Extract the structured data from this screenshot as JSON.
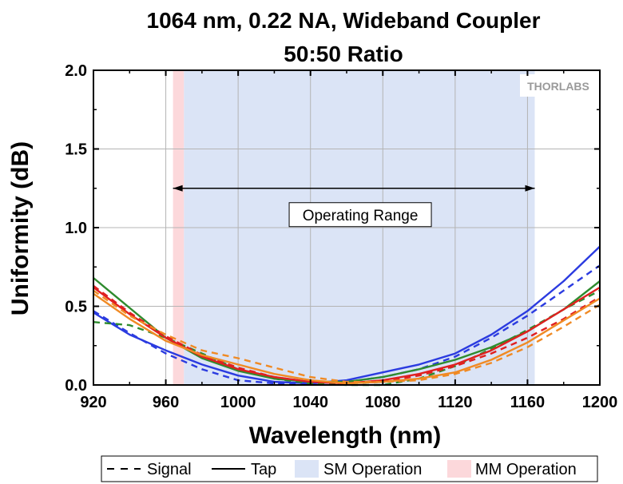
{
  "chart_data": {
    "type": "line",
    "title_line1": "1064 nm, 0.22 NA, Wideband Coupler",
    "title_line2": "50:50 Ratio",
    "xlabel": "Wavelength (nm)",
    "ylabel": "Uniformity (dB)",
    "xlim": [
      920,
      1200
    ],
    "ylim": [
      0,
      2.0
    ],
    "xticks": [
      920,
      960,
      1000,
      1040,
      1080,
      1120,
      1160,
      1200
    ],
    "yticks": [
      0,
      0.5,
      1.0,
      1.5,
      2.0
    ],
    "ytick_labels": [
      "0.0",
      "0.5",
      "1.0",
      "1.5",
      "2.0"
    ],
    "grid": true,
    "bands": [
      {
        "name": "SM Operation",
        "x": [
          970,
          1164
        ],
        "color": "#dbe4f6"
      },
      {
        "name": "MM Operation",
        "x": [
          964,
          970
        ],
        "color": "#fcd8db"
      }
    ],
    "annotation": {
      "text": "Operating Range",
      "x_start": 964,
      "x_end": 1164,
      "y": 1.25
    },
    "logo": "THORLABS",
    "legend": {
      "position": "bottom",
      "entries": [
        {
          "label": "Signal",
          "style": "dashed"
        },
        {
          "label": "Tap",
          "style": "solid"
        },
        {
          "label": "SM Operation",
          "style": "band",
          "color": "#dbe4f6"
        },
        {
          "label": "MM Operation",
          "style": "band",
          "color": "#fcd8db"
        }
      ]
    },
    "series": [
      {
        "color": "#2b3be0",
        "style": "solid",
        "x": [
          920,
          940,
          960,
          980,
          1000,
          1020,
          1040,
          1060,
          1080,
          1100,
          1120,
          1140,
          1160,
          1180,
          1200
        ],
        "values": [
          0.46,
          0.32,
          0.22,
          0.13,
          0.06,
          0.02,
          0.01,
          0.03,
          0.08,
          0.13,
          0.2,
          0.32,
          0.47,
          0.66,
          0.88
        ]
      },
      {
        "color": "#2b3be0",
        "style": "dashed",
        "x": [
          920,
          940,
          960,
          980,
          1000,
          1020,
          1040,
          1060,
          1080,
          1100,
          1120,
          1140,
          1160,
          1180,
          1200
        ],
        "values": [
          0.47,
          0.33,
          0.2,
          0.1,
          0.03,
          0.01,
          0.01,
          0.02,
          0.05,
          0.1,
          0.18,
          0.3,
          0.44,
          0.6,
          0.76
        ]
      },
      {
        "color": "#2e8b2e",
        "style": "solid",
        "x": [
          920,
          940,
          960,
          980,
          1000,
          1020,
          1040,
          1060,
          1080,
          1100,
          1120,
          1140,
          1160,
          1180,
          1200
        ],
        "values": [
          0.68,
          0.49,
          0.3,
          0.17,
          0.09,
          0.04,
          0.02,
          0.02,
          0.05,
          0.1,
          0.16,
          0.24,
          0.34,
          0.48,
          0.66
        ]
      },
      {
        "color": "#2e8b2e",
        "style": "dashed",
        "x": [
          920,
          940,
          960,
          980,
          1000,
          1020,
          1040,
          1060,
          1080,
          1100,
          1120,
          1140,
          1160,
          1180,
          1200
        ],
        "values": [
          0.4,
          0.38,
          0.3,
          0.2,
          0.1,
          0.04,
          0.01,
          0.0,
          0.0,
          0.04,
          0.12,
          0.23,
          0.35,
          0.48,
          0.6
        ]
      },
      {
        "color": "#e02020",
        "style": "solid",
        "x": [
          920,
          940,
          960,
          980,
          1000,
          1020,
          1040,
          1060,
          1080,
          1100,
          1120,
          1140,
          1160,
          1180,
          1200
        ],
        "values": [
          0.62,
          0.45,
          0.3,
          0.18,
          0.1,
          0.05,
          0.02,
          0.01,
          0.03,
          0.07,
          0.13,
          0.22,
          0.34,
          0.48,
          0.62
        ]
      },
      {
        "color": "#e02020",
        "style": "dashed",
        "x": [
          920,
          940,
          960,
          980,
          1000,
          1020,
          1040,
          1060,
          1080,
          1100,
          1120,
          1140,
          1160,
          1180,
          1200
        ],
        "values": [
          0.63,
          0.46,
          0.31,
          0.19,
          0.11,
          0.05,
          0.02,
          0.01,
          0.02,
          0.06,
          0.12,
          0.2,
          0.3,
          0.42,
          0.56
        ]
      },
      {
        "color": "#f08a24",
        "style": "solid",
        "x": [
          920,
          940,
          960,
          980,
          1000,
          1020,
          1040,
          1060,
          1080,
          1100,
          1120,
          1140,
          1160,
          1180,
          1200
        ],
        "values": [
          0.58,
          0.42,
          0.28,
          0.19,
          0.13,
          0.07,
          0.03,
          0.01,
          0.02,
          0.04,
          0.08,
          0.16,
          0.27,
          0.41,
          0.55
        ]
      },
      {
        "color": "#f08a24",
        "style": "dashed",
        "x": [
          920,
          940,
          960,
          980,
          1000,
          1020,
          1040,
          1060,
          1080,
          1100,
          1120,
          1140,
          1160,
          1180,
          1200
        ],
        "values": [
          0.6,
          0.44,
          0.32,
          0.22,
          0.17,
          0.11,
          0.05,
          0.02,
          0.02,
          0.03,
          0.07,
          0.14,
          0.24,
          0.37,
          0.51
        ]
      }
    ]
  }
}
